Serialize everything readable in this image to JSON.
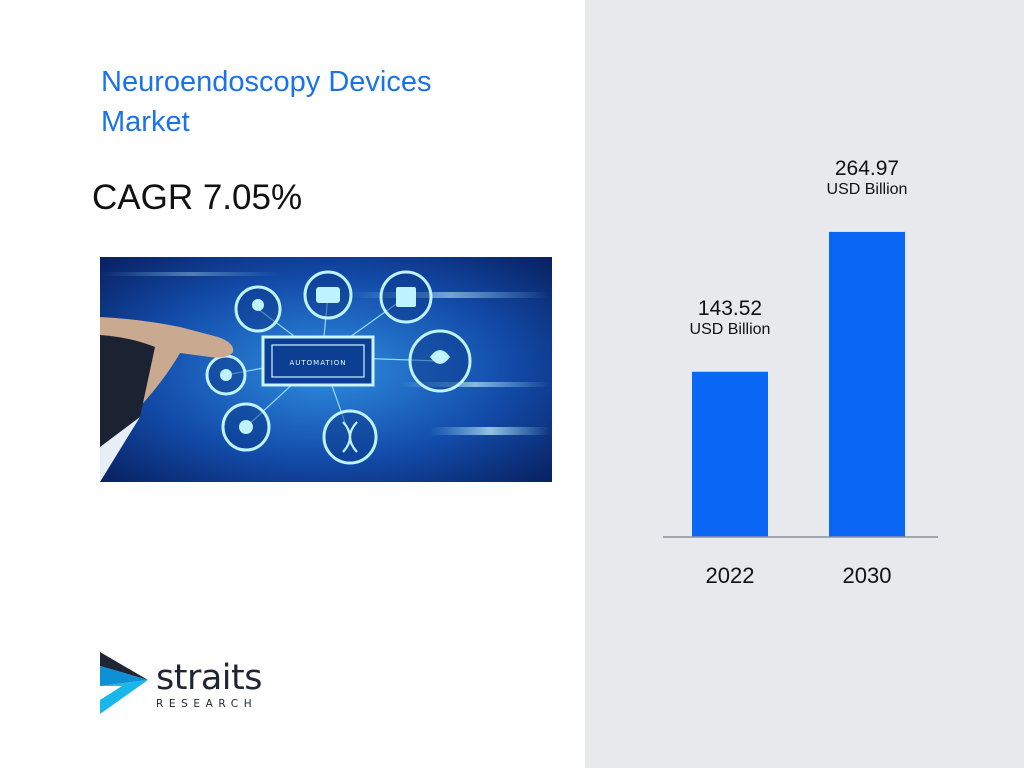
{
  "slide": {
    "title": "Neuroendoscopy Devices Market",
    "cagr_text": "CAGR 7.05%"
  },
  "hero_image": {
    "icon": "automation-network-illustration",
    "label": "AUTOMATION"
  },
  "chart_data": {
    "type": "bar",
    "categories": [
      "2022",
      "2030"
    ],
    "values": [
      143.52,
      264.97
    ],
    "value_labels": [
      "143.52",
      "264.97"
    ],
    "unit_label": "USD Billion",
    "title": "",
    "xlabel": "",
    "ylabel": "",
    "ylim": [
      0,
      300
    ],
    "grid": false,
    "bar_color": "#0a66f5",
    "axis_color": "#8a9099"
  },
  "logo": {
    "icon": "straits-arrow-logo-icon",
    "word": "straits",
    "sub": "RESEARCH",
    "colors": [
      "#1f2533",
      "#1ab7ea"
    ]
  },
  "colors": {
    "title": "#1a73e8",
    "panel": "#e8e9ec"
  }
}
